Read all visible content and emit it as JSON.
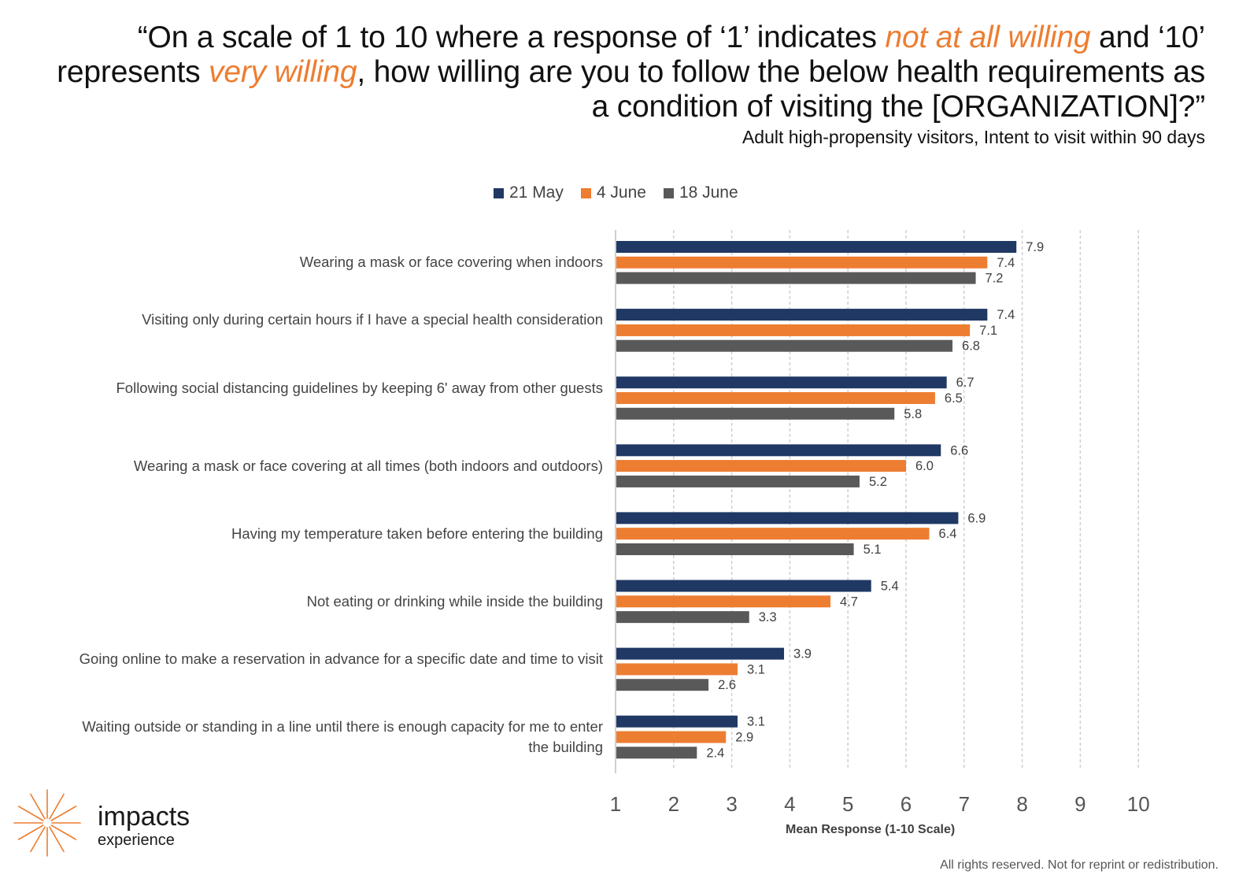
{
  "title": {
    "part1": "“On a scale of 1 to 10 where a response of ‘1’ indicates ",
    "highlight1": "not at all willing",
    "part2": " and ‘10’ represents ",
    "highlight2": "very willing",
    "part3": ", how willing are you to follow the below health requirements as a condition of visiting the [ORGANIZATION]?”",
    "highlight_color": "#ed7d31"
  },
  "subtitle": "Adult high-propensity visitors, Intent to visit within 90 days",
  "chart_data": {
    "type": "bar",
    "orientation": "horizontal",
    "xlabel": "Mean Response (1-10 Scale)",
    "xlim": [
      1,
      10
    ],
    "xticks": [
      "1",
      "2",
      "3",
      "4",
      "5",
      "6",
      "7",
      "8",
      "9",
      "10"
    ],
    "grid": "vertical dashed",
    "legend_position": "top",
    "categories": [
      "Wearing a mask or face covering when indoors",
      "Visiting only during certain hours if I have a special health consideration",
      "Following social distancing guidelines by keeping 6' away from other guests",
      "Wearing a mask or face covering at all times (both indoors and outdoors)",
      "Having my temperature taken before entering the building",
      "Not eating or drinking while inside the building",
      "Going online to make a reservation in advance for a specific date and time to visit",
      "Waiting outside or standing in a line until there is enough capacity for me to enter the building"
    ],
    "series": [
      {
        "name": "21 May",
        "color": "#1f3864",
        "values": [
          7.9,
          7.4,
          6.7,
          6.6,
          6.9,
          5.4,
          3.9,
          3.1
        ]
      },
      {
        "name": "4 June",
        "color": "#ed7d31",
        "values": [
          7.4,
          7.1,
          6.5,
          6.0,
          6.4,
          4.7,
          3.1,
          2.9
        ]
      },
      {
        "name": "18 June",
        "color": "#595959",
        "values": [
          7.2,
          6.8,
          5.8,
          5.2,
          5.1,
          3.3,
          2.6,
          2.4
        ]
      }
    ]
  },
  "logo": {
    "word": "impacts",
    "sub": "experience",
    "color": "#ed7d31"
  },
  "footer": "All rights reserved. Not for reprint or redistribution."
}
